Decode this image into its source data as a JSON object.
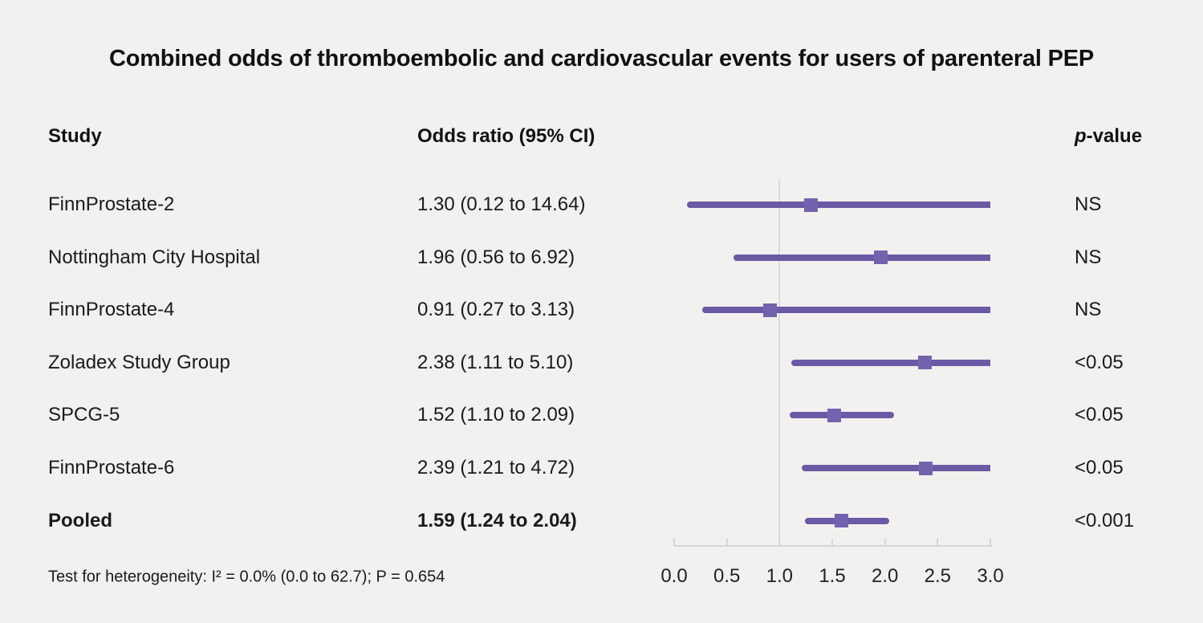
{
  "title": "Combined odds of thromboembolic and cardiovascular events for users of parenteral PEP",
  "columns": {
    "study": "Study",
    "odds_ratio": "Odds ratio (95% CI)",
    "p_italic": "p",
    "p_rest": "-value"
  },
  "footer": "Test for heterogeneity: I² = 0.0% (0.0 to 62.7); P = 0.654",
  "colors": {
    "background": "#f2f1f0",
    "ci_line": "#6a59a4",
    "marker": "#7363ae",
    "reference_line": "#d9dde3",
    "axis": "#d3d6db",
    "text": "#1a1a1a"
  },
  "chart_data": {
    "type": "forest",
    "title": "Combined odds of thromboembolic and cardiovascular events for users of parenteral PEP",
    "xlabel": "Odds ratio",
    "xlim": [
      0.0,
      3.0
    ],
    "reference_line": 1.0,
    "axis": {
      "ticks": [
        0.0,
        0.5,
        1.0,
        1.5,
        2.0,
        2.5,
        3.0
      ],
      "tick_labels": [
        "0.0",
        "0.5",
        "1.0",
        "1.5",
        "2.0",
        "2.5",
        "3.0"
      ]
    },
    "rows": [
      {
        "study": "FinnProstate-2",
        "or": 1.3,
        "lo": 0.12,
        "hi": 14.64,
        "or_label": "1.30 (0.12 to 14.64)",
        "p": "NS",
        "bold": false
      },
      {
        "study": "Nottingham City Hospital",
        "or": 1.96,
        "lo": 0.56,
        "hi": 6.92,
        "or_label": "1.96 (0.56 to 6.92)",
        "p": "NS",
        "bold": false
      },
      {
        "study": "FinnProstate-4",
        "or": 0.91,
        "lo": 0.27,
        "hi": 3.13,
        "or_label": "0.91 (0.27 to 3.13)",
        "p": "NS",
        "bold": false
      },
      {
        "study": "Zoladex Study Group",
        "or": 2.38,
        "lo": 1.11,
        "hi": 5.1,
        "or_label": "2.38 (1.11 to 5.10)",
        "p": "<0.05",
        "bold": false
      },
      {
        "study": "SPCG-5",
        "or": 1.52,
        "lo": 1.1,
        "hi": 2.09,
        "or_label": "1.52 (1.10 to 2.09)",
        "p": "<0.05",
        "bold": false
      },
      {
        "study": "FinnProstate-6",
        "or": 2.39,
        "lo": 1.21,
        "hi": 4.72,
        "or_label": "2.39 (1.21 to 4.72)",
        "p": "<0.05",
        "bold": false
      },
      {
        "study": "Pooled",
        "or": 1.59,
        "lo": 1.24,
        "hi": 2.04,
        "or_label": "1.59 (1.24 to 2.04)",
        "p": "<0.001",
        "bold": true
      }
    ]
  }
}
